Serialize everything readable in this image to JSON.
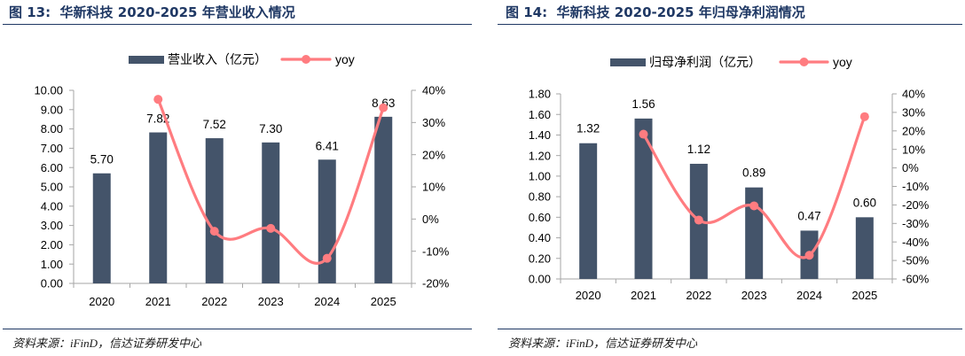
{
  "panels": [
    {
      "source": "资料来源：iFinD，信达证券研发中心"
    },
    {
      "source": "资料来源：iFinD，信达证券研发中心"
    }
  ],
  "colors": {
    "bar": "#44546A",
    "line": "#FF7C80",
    "title": "#1F3864"
  },
  "chart_data": [
    {
      "type": "bar",
      "title": "图 13:  华新科技 2020-2025 年营业收入情况",
      "categories": [
        "2020",
        "2021",
        "2022",
        "2023",
        "2024",
        "2025"
      ],
      "series": [
        {
          "name": "营业收入（亿元）",
          "type": "bar",
          "y_axis": "left",
          "values": [
            5.7,
            7.82,
            7.52,
            7.3,
            6.41,
            8.63
          ],
          "data_labels": [
            "5.70",
            "7.82",
            "7.52",
            "7.30",
            "6.41",
            "8.63"
          ]
        },
        {
          "name": "yoy",
          "type": "line",
          "y_axis": "right",
          "smooth": true,
          "values": [
            null,
            37.2,
            -3.8,
            -2.9,
            -12.2,
            34.6
          ]
        }
      ],
      "y_left": {
        "ylim": [
          0,
          10
        ],
        "ticks": [
          "0.00",
          "1.00",
          "2.00",
          "3.00",
          "4.00",
          "5.00",
          "6.00",
          "7.00",
          "8.00",
          "9.00",
          "10.00"
        ]
      },
      "y_right": {
        "ylim": [
          -20,
          40
        ],
        "ticks": [
          "-20%",
          "-10%",
          "0%",
          "10%",
          "20%",
          "30%",
          "40%"
        ]
      },
      "legend": "top",
      "grid": false
    },
    {
      "type": "bar",
      "title": "图 14:  华新科技 2020-2025 年归母净利润情况",
      "categories": [
        "2020",
        "2021",
        "2022",
        "2023",
        "2024",
        "2025"
      ],
      "series": [
        {
          "name": "归母净利润（亿元）",
          "type": "bar",
          "y_axis": "left",
          "values": [
            1.32,
            1.56,
            1.12,
            0.89,
            0.47,
            0.6
          ],
          "data_labels": [
            "1.32",
            "1.56",
            "1.12",
            "0.89",
            "0.47",
            "0.60"
          ]
        },
        {
          "name": "yoy",
          "type": "line",
          "y_axis": "right",
          "smooth": true,
          "values": [
            null,
            18.2,
            -28.2,
            -20.5,
            -47.2,
            27.7
          ]
        }
      ],
      "y_left": {
        "ylim": [
          0,
          1.8
        ],
        "ticks": [
          "0.00",
          "0.20",
          "0.40",
          "0.60",
          "0.80",
          "1.00",
          "1.20",
          "1.40",
          "1.60",
          "1.80"
        ]
      },
      "y_right": {
        "ylim": [
          -60,
          40
        ],
        "ticks": [
          "-60%",
          "-50%",
          "-40%",
          "-30%",
          "-20%",
          "-10%",
          "0%",
          "10%",
          "20%",
          "30%",
          "40%"
        ]
      },
      "legend": "top",
      "grid": false
    }
  ]
}
